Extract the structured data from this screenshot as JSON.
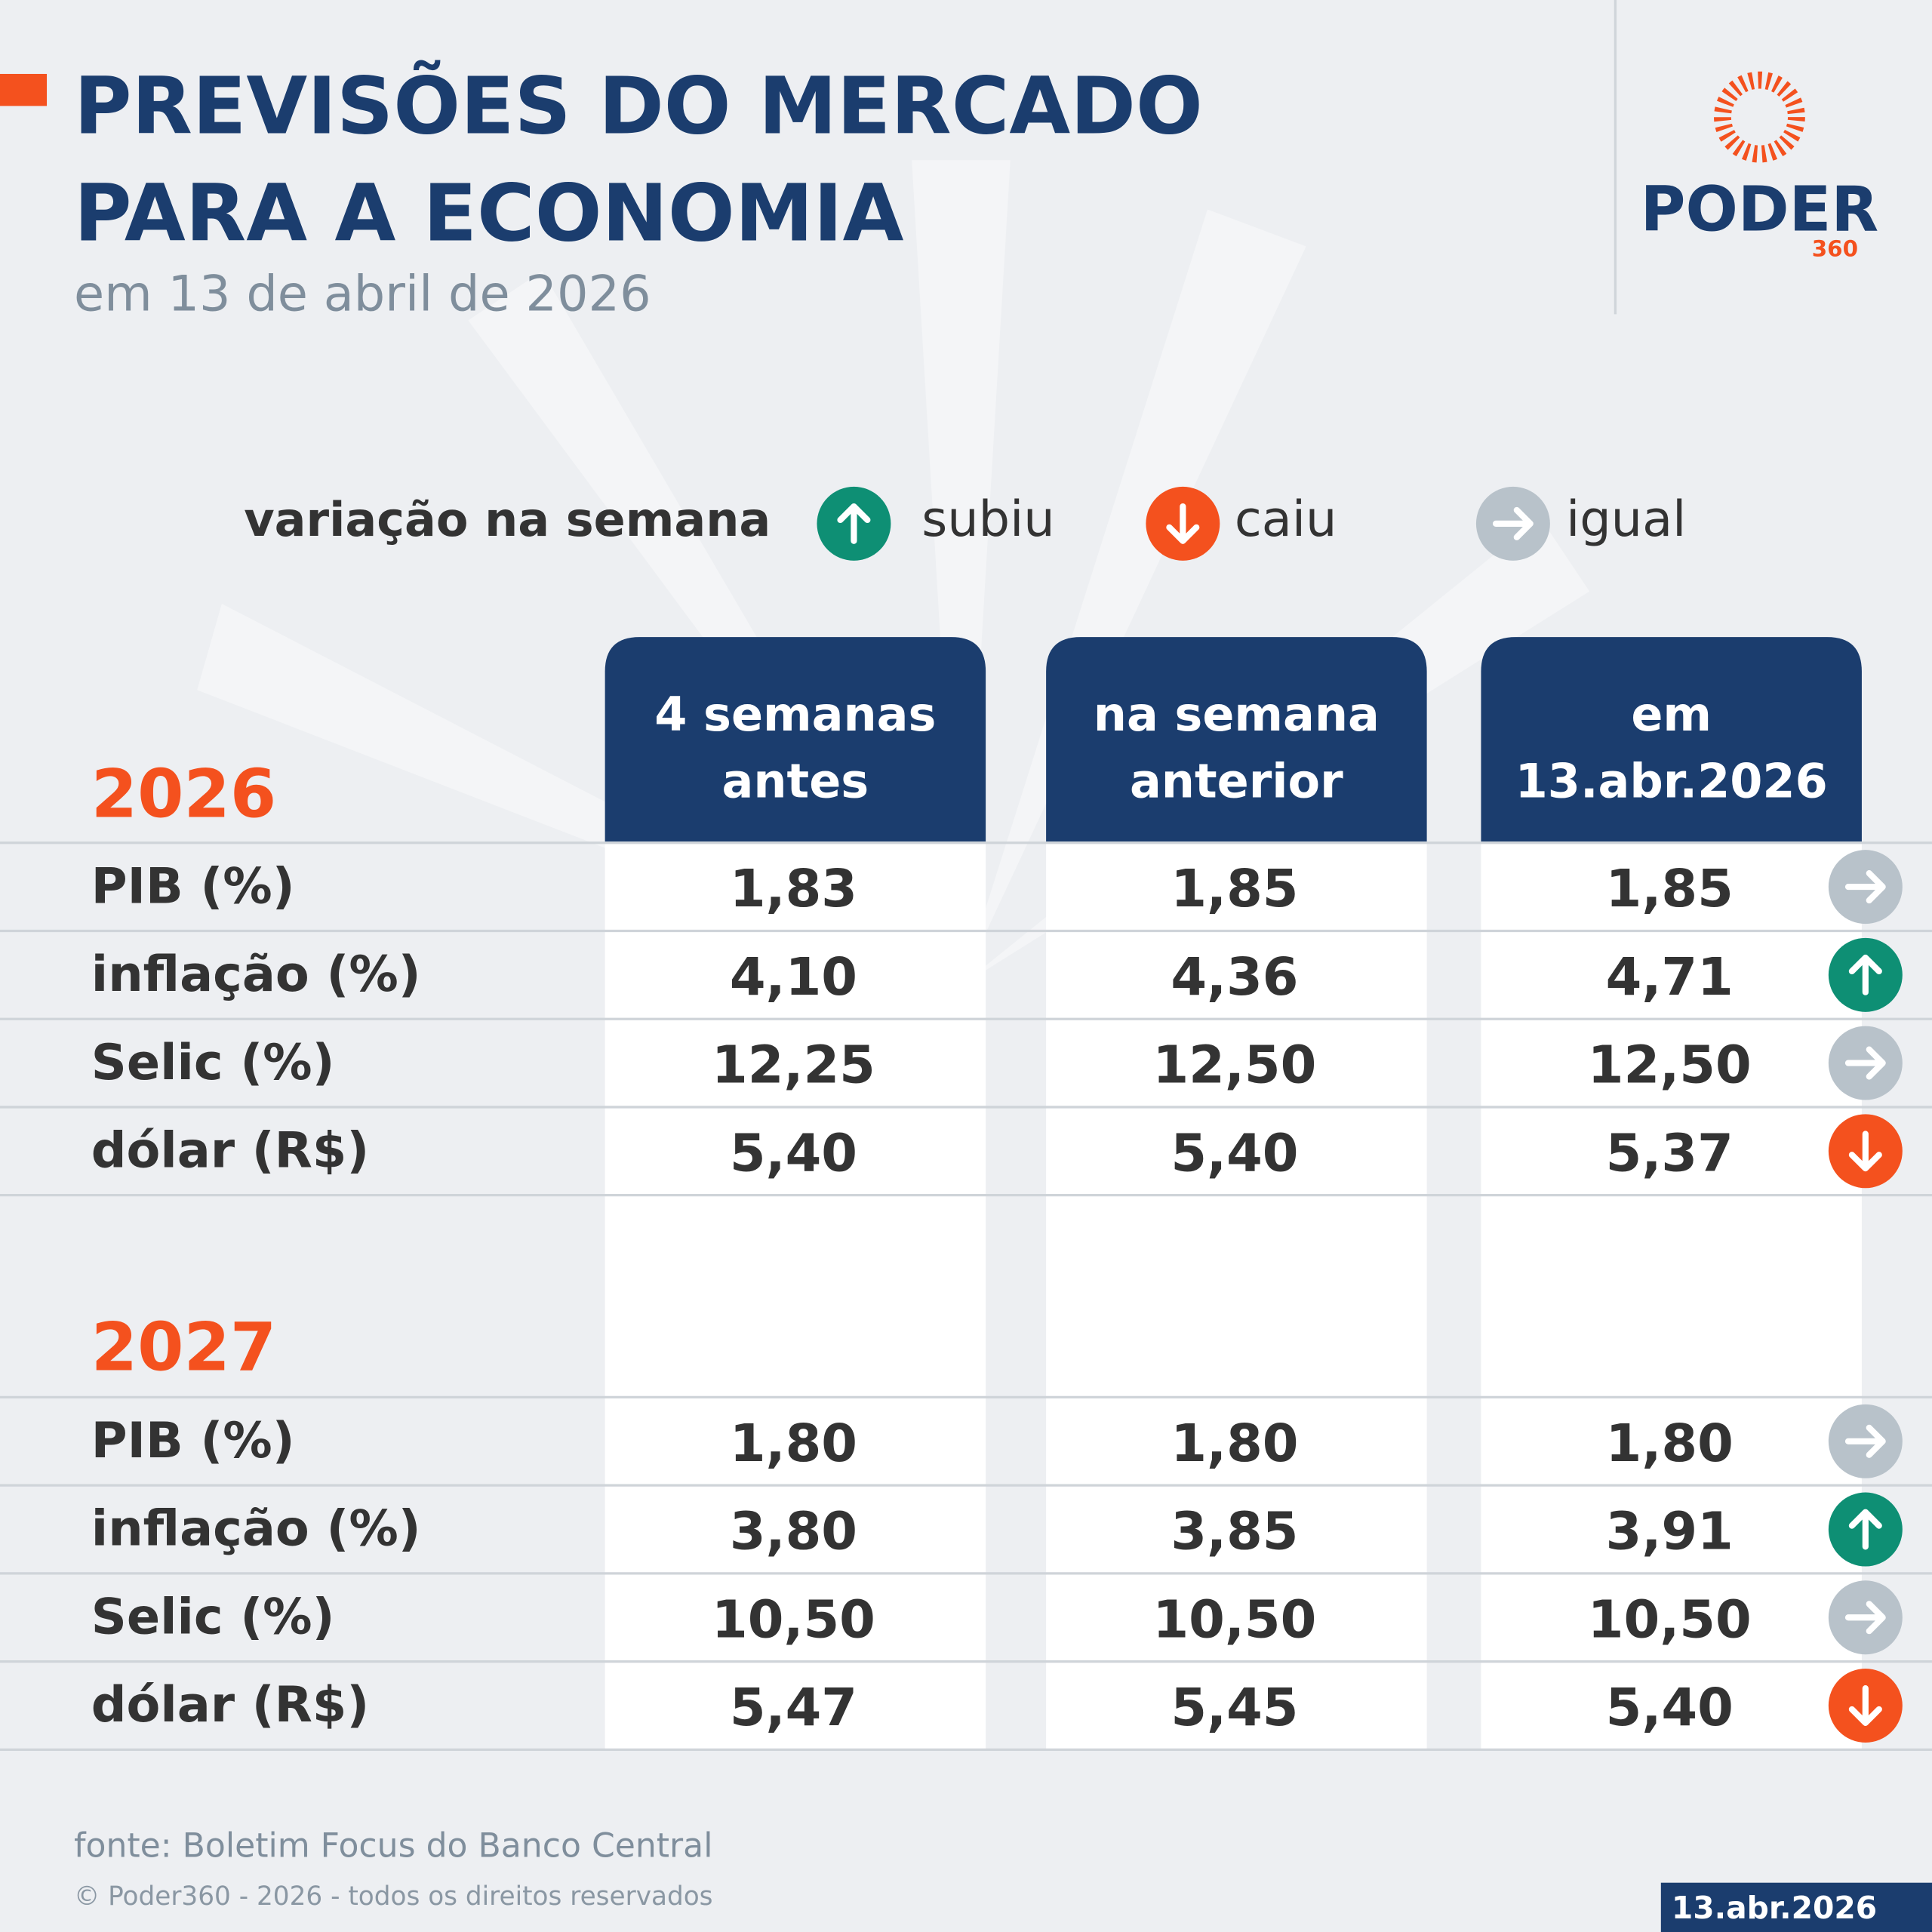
{
  "header": {
    "title": [
      "PREVISÕES DO MERCADO",
      "PARA A ECONOMIA"
    ],
    "subtitle": "em 13 de abril de 2026",
    "logo": [
      "PODER",
      "360"
    ]
  },
  "legend": {
    "label": "variação na semana",
    "items": [
      "subiu",
      "caiu",
      "igual"
    ]
  },
  "table": {
    "columns": [
      [
        "4 semanas",
        "antes"
      ],
      [
        "na semana",
        "anterior"
      ],
      [
        "em",
        "13.abr.2026"
      ]
    ],
    "sections": [
      {
        "year": "2026",
        "rows": [
          {
            "label": "PIB (%)",
            "values": [
              "1,83",
              "1,85",
              "1,85"
            ],
            "trend": "igual"
          },
          {
            "label": "inflação (%)",
            "values": [
              "4,10",
              "4,36",
              "4,71"
            ],
            "trend": "subiu"
          },
          {
            "label": "Selic (%)",
            "values": [
              "12,25",
              "12,50",
              "12,50"
            ],
            "trend": "igual"
          },
          {
            "label": "dólar (R$)",
            "values": [
              "5,40",
              "5,40",
              "5,37"
            ],
            "trend": "caiu"
          }
        ]
      },
      {
        "year": "2027",
        "rows": [
          {
            "label": "PIB (%)",
            "values": [
              "1,80",
              "1,80",
              "1,80"
            ],
            "trend": "igual"
          },
          {
            "label": "inflação (%)",
            "values": [
              "3,80",
              "3,85",
              "3,91"
            ],
            "trend": "subiu"
          },
          {
            "label": "Selic (%)",
            "values": [
              "10,50",
              "10,50",
              "10,50"
            ],
            "trend": "igual"
          },
          {
            "label": "dólar (R$)",
            "values": [
              "5,47",
              "5,45",
              "5,40"
            ],
            "trend": "caiu"
          }
        ]
      }
    ]
  },
  "footer": {
    "source": "fonte: Boletim Focus do Banco Central",
    "copyright": "© Poder360 - 2026 - todos os direitos reservados",
    "date": "13.abr.2026"
  }
}
